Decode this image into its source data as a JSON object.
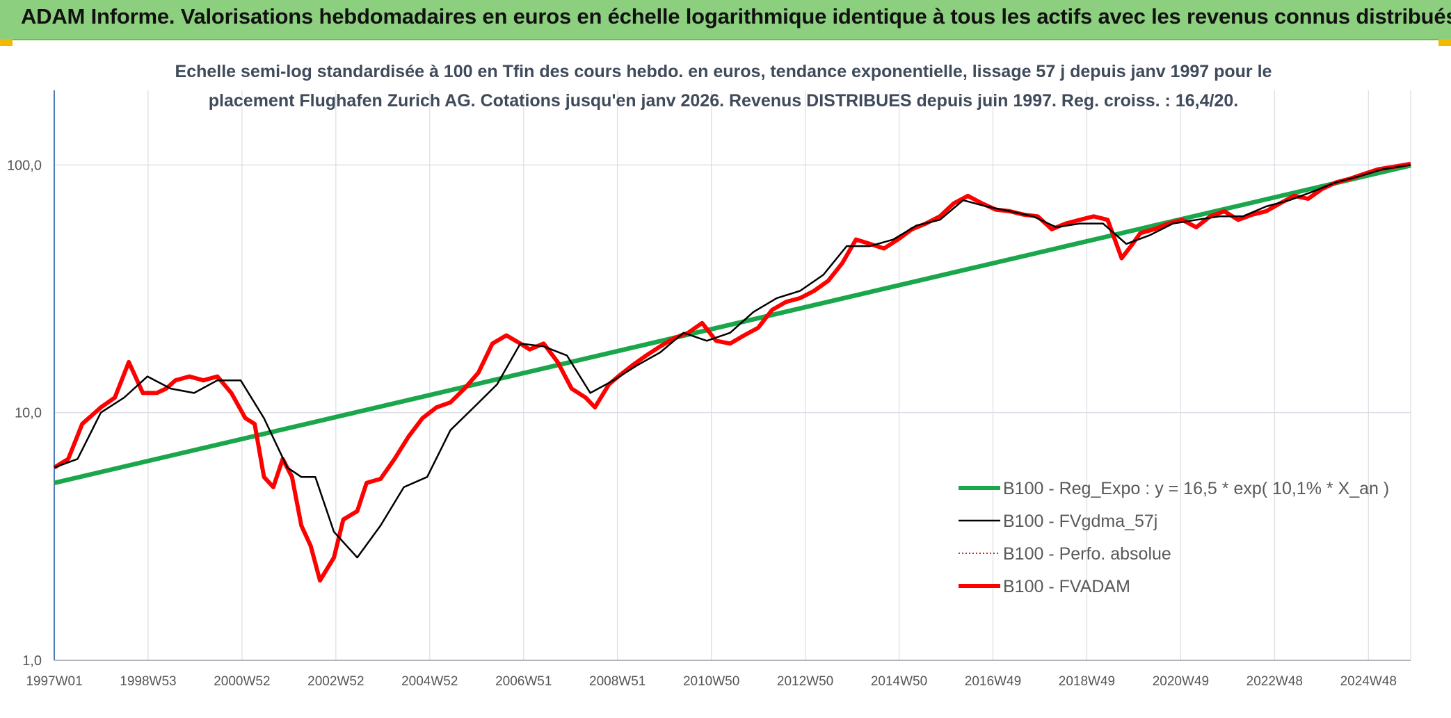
{
  "banner": {
    "title": "ADAM Informe. Valorisations hebdomadaires en euros en échelle logarithmique identique à tous les actifs avec les revenus connus distribués",
    "color": "#8ccf7e"
  },
  "chart_data": {
    "type": "line",
    "title": "",
    "subtitle_lines": [
      "Echelle semi-log standardisée à 100 en Tfin des cours hebdo. en euros, tendance exponentielle, lissage 57 j depuis janv 1997 pour le",
      "placement Flughafen Zurich AG. Cotations jusqu'en janv 2026. Revenus DISTRIBUES depuis juin 1997. Reg. croiss. : 16,4/20."
    ],
    "y_scale": "log",
    "ylim": [
      1,
      200
    ],
    "y_ticks": [
      {
        "value": 1,
        "label": "1,0"
      },
      {
        "value": 10,
        "label": "10,0"
      },
      {
        "value": 100,
        "label": "100,0"
      }
    ],
    "x_ticks": [
      "1997W01",
      "1998W53",
      "2000W52",
      "2002W52",
      "2004W52",
      "2006W51",
      "2008W51",
      "2010W50",
      "2012W50",
      "2014W50",
      "2016W49",
      "2018W49",
      "2020W49",
      "2022W48",
      "2024W48"
    ],
    "xlim_years": [
      1997.0,
      2026.1
    ],
    "grid": true,
    "legend_position": "bottom-right",
    "series": [
      {
        "name": "B100 - Reg_Expo : y = 16,5 * exp( 10,1% *  X_an )",
        "color": "#1aa64a",
        "style": "solid-thick",
        "x": [
          1997.0,
          2026.1
        ],
        "y": [
          5.2,
          99.5
        ]
      },
      {
        "name": "B100 - FVgdma_57j",
        "color": "#000000",
        "style": "solid-thin",
        "x": [
          1997.0,
          1997.5,
          1998.0,
          1998.5,
          1999.0,
          1999.5,
          2000.0,
          2000.5,
          2001.0,
          2001.5,
          2002.0,
          2002.3,
          2002.6,
          2003.0,
          2003.5,
          2004.0,
          2004.5,
          2005.0,
          2005.5,
          2006.0,
          2006.5,
          2007.0,
          2007.5,
          2008.0,
          2008.5,
          2009.0,
          2009.5,
          2010.0,
          2010.5,
          2011.0,
          2011.5,
          2012.0,
          2012.5,
          2013.0,
          2013.5,
          2014.0,
          2014.5,
          2015.0,
          2015.5,
          2016.0,
          2016.5,
          2017.0,
          2017.5,
          2018.0,
          2018.5,
          2019.0,
          2019.5,
          2020.0,
          2020.5,
          2021.0,
          2021.5,
          2022.0,
          2022.5,
          2023.0,
          2023.5,
          2024.0,
          2024.5,
          2025.0,
          2025.5,
          2026.1
        ],
        "y": [
          6.0,
          6.5,
          10.0,
          11.5,
          14.0,
          12.5,
          12.0,
          13.5,
          13.5,
          9.5,
          6.0,
          5.5,
          5.5,
          3.3,
          2.6,
          3.5,
          5.0,
          5.5,
          8.5,
          10.5,
          13.0,
          19.0,
          18.5,
          17.0,
          12.0,
          13.5,
          15.5,
          17.5,
          21.0,
          19.5,
          21.0,
          25.5,
          29.0,
          31.0,
          36.0,
          47.0,
          47.0,
          50.0,
          57.0,
          60.0,
          72.0,
          68.0,
          65.0,
          62.0,
          56.0,
          58.0,
          58.0,
          48.0,
          52.0,
          58.0,
          60.0,
          62.0,
          62.0,
          68.0,
          72.0,
          78.0,
          85.0,
          90.0,
          96.0,
          100.0
        ]
      },
      {
        "name": "B100 - Perfo. absolue",
        "color": "#d62728",
        "style": "dotted",
        "x": [],
        "y": []
      },
      {
        "name": "B100 - FVADAM",
        "color": "#ff0000",
        "style": "solid-thick",
        "x": [
          1997.0,
          1997.3,
          1997.6,
          1998.0,
          1998.3,
          1998.6,
          1998.9,
          1999.2,
          1999.4,
          1999.6,
          1999.9,
          2000.2,
          2000.5,
          2000.8,
          2001.1,
          2001.3,
          2001.5,
          2001.7,
          2001.9,
          2002.1,
          2002.3,
          2002.5,
          2002.7,
          2003.0,
          2003.2,
          2003.5,
          2003.7,
          2004.0,
          2004.3,
          2004.6,
          2004.9,
          2005.2,
          2005.5,
          2005.8,
          2006.1,
          2006.4,
          2006.7,
          2007.0,
          2007.2,
          2007.5,
          2007.8,
          2008.1,
          2008.4,
          2008.6,
          2008.9,
          2009.1,
          2009.4,
          2009.7,
          2010.0,
          2010.3,
          2010.6,
          2010.9,
          2011.2,
          2011.5,
          2011.8,
          2012.1,
          2012.4,
          2012.7,
          2013.0,
          2013.3,
          2013.6,
          2013.9,
          2014.2,
          2014.5,
          2014.8,
          2015.1,
          2015.4,
          2015.7,
          2016.0,
          2016.3,
          2016.6,
          2016.9,
          2017.2,
          2017.5,
          2017.8,
          2018.1,
          2018.4,
          2018.7,
          2019.0,
          2019.3,
          2019.6,
          2019.9,
          2020.1,
          2020.3,
          2020.6,
          2020.9,
          2021.2,
          2021.5,
          2021.8,
          2022.1,
          2022.4,
          2022.7,
          2023.0,
          2023.3,
          2023.6,
          2023.9,
          2024.2,
          2024.5,
          2024.8,
          2025.1,
          2025.4,
          2025.7,
          2026.1
        ],
        "y": [
          6.0,
          6.5,
          9.0,
          10.5,
          11.5,
          16.0,
          12.0,
          12.0,
          12.5,
          13.5,
          14.0,
          13.5,
          14.0,
          12.0,
          9.5,
          9.0,
          5.5,
          5.0,
          6.5,
          5.5,
          3.5,
          2.9,
          2.1,
          2.6,
          3.7,
          4.0,
          5.2,
          5.4,
          6.5,
          8.0,
          9.5,
          10.5,
          11.0,
          12.5,
          14.5,
          19.0,
          20.5,
          19.0,
          18.0,
          19.0,
          16.0,
          12.5,
          11.5,
          10.5,
          13.0,
          14.0,
          15.5,
          17.0,
          18.5,
          20.0,
          21.0,
          23.0,
          19.5,
          19.0,
          20.5,
          22.0,
          26.0,
          28.0,
          29.0,
          31.0,
          34.0,
          40.0,
          50.0,
          48.0,
          46.0,
          50.0,
          55.0,
          58.0,
          62.0,
          70.0,
          75.0,
          70.0,
          66.0,
          65.0,
          63.0,
          62.0,
          55.0,
          58.0,
          60.0,
          62.0,
          60.0,
          42.0,
          47.0,
          53.0,
          55.0,
          58.0,
          60.0,
          56.0,
          62.0,
          65.0,
          60.0,
          63.0,
          65.0,
          70.0,
          75.0,
          73.0,
          80.0,
          85.0,
          88.0,
          92.0,
          96.0,
          98.0,
          101.0
        ]
      }
    ]
  }
}
